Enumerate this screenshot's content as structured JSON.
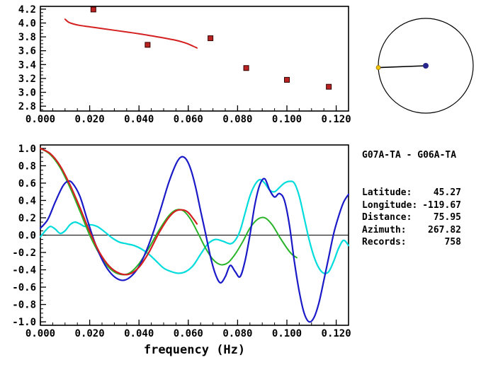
{
  "figure_bg": "#ffffff",
  "station_info": {
    "pair": "G07A-TA - G06A-TA",
    "rows": [
      {
        "label": "Latitude:",
        "value": "45.27"
      },
      {
        "label": "Longitude:",
        "value": "-119.67"
      },
      {
        "label": "Distance:",
        "value": "75.95"
      },
      {
        "label": "Azimuth:",
        "value": "267.82"
      },
      {
        "label": "Records:",
        "value": "758"
      }
    ]
  },
  "azimuth_plot": {
    "azimuth_deg": 267.82,
    "circle_color": "#000000",
    "line_color": "#000000",
    "center_dot_color": "#26268c",
    "edge_dot_color": "#f2c200"
  },
  "chart_data": [
    {
      "type": "line",
      "name": "group-velocity-dispersion",
      "title": "",
      "xlabel": "",
      "ylabel": "",
      "xlim": [
        0,
        0.125
      ],
      "ylim": [
        2.73,
        4.24
      ],
      "xticks": [
        0.0,
        0.02,
        0.04,
        0.06,
        0.08,
        0.1,
        0.12
      ],
      "xtick_labels": [
        "0.000",
        "0.020",
        "0.040",
        "0.060",
        "0.080",
        "0.100",
        "0.120"
      ],
      "yticks": [
        2.8,
        3.0,
        3.2,
        3.4,
        3.6,
        3.8,
        4.0,
        4.2
      ],
      "ytick_labels": [
        "2.8",
        "3.0",
        "3.2",
        "3.4",
        "3.6",
        "3.8",
        "4.0",
        "4.2"
      ],
      "x_minor_step": 0.005,
      "y_minor_step": 0.05,
      "zero_line": false,
      "series": [
        {
          "name": "reference-dispersion-curve",
          "type": "line",
          "color": "#d42020",
          "width": 2.0,
          "points": [
            [
              0.01,
              4.055
            ],
            [
              0.0115,
              4.01
            ],
            [
              0.0135,
              3.985
            ],
            [
              0.016,
              3.965
            ],
            [
              0.02,
              3.945
            ],
            [
              0.025,
              3.92
            ],
            [
              0.03,
              3.895
            ],
            [
              0.035,
              3.87
            ],
            [
              0.04,
              3.845
            ],
            [
              0.045,
              3.815
            ],
            [
              0.05,
              3.785
            ],
            [
              0.055,
              3.75
            ],
            [
              0.059,
              3.71
            ],
            [
              0.062,
              3.665
            ],
            [
              0.0635,
              3.64
            ]
          ]
        },
        {
          "name": "measured-velocity",
          "type": "scatter",
          "marker": "square",
          "color": "#bb2222",
          "edge_color": "#300000",
          "size": 7,
          "points": [
            [
              0.0215,
              4.195
            ],
            [
              0.0435,
              3.685
            ],
            [
              0.069,
              3.78
            ],
            [
              0.0835,
              3.35
            ],
            [
              0.1,
              3.18
            ],
            [
              0.117,
              3.08
            ]
          ]
        }
      ]
    },
    {
      "type": "line",
      "name": "cross-correlation",
      "title": "",
      "xlabel": "frequency (Hz)",
      "ylabel": "",
      "xlim": [
        0,
        0.125
      ],
      "ylim": [
        -1.04,
        1.04
      ],
      "xticks": [
        0.0,
        0.02,
        0.04,
        0.06,
        0.08,
        0.1,
        0.12
      ],
      "xtick_labels": [
        "0.000",
        "0.020",
        "0.040",
        "0.060",
        "0.080",
        "0.100",
        "0.120"
      ],
      "yticks": [
        -1.0,
        -0.8,
        -0.6,
        -0.4,
        -0.2,
        0.0,
        0.2,
        0.4,
        0.6,
        0.8,
        1.0
      ],
      "ytick_labels": [
        "-1.0",
        "-0.8",
        "-0.6",
        "-0.4",
        "-0.2",
        "0.0",
        "0.2",
        "0.4",
        "0.6",
        "0.8",
        "1.0"
      ],
      "x_minor_step": 0.005,
      "y_minor_step": 0.05,
      "zero_line": true,
      "series": [
        {
          "name": "cyan-curve",
          "type": "line",
          "color": "#00dcdc",
          "width": 2.2,
          "points": [
            [
              0.0,
              -0.02
            ],
            [
              0.002,
              0.05
            ],
            [
              0.004,
              0.1
            ],
            [
              0.006,
              0.07
            ],
            [
              0.008,
              0.02
            ],
            [
              0.01,
              0.05
            ],
            [
              0.012,
              0.12
            ],
            [
              0.014,
              0.15
            ],
            [
              0.016,
              0.13
            ],
            [
              0.018,
              0.1
            ],
            [
              0.02,
              0.12
            ],
            [
              0.023,
              0.1
            ],
            [
              0.026,
              0.04
            ],
            [
              0.029,
              -0.03
            ],
            [
              0.032,
              -0.08
            ],
            [
              0.035,
              -0.1
            ],
            [
              0.038,
              -0.12
            ],
            [
              0.041,
              -0.16
            ],
            [
              0.044,
              -0.22
            ],
            [
              0.047,
              -0.3
            ],
            [
              0.05,
              -0.38
            ],
            [
              0.053,
              -0.42
            ],
            [
              0.056,
              -0.44
            ],
            [
              0.059,
              -0.42
            ],
            [
              0.062,
              -0.35
            ],
            [
              0.065,
              -0.22
            ],
            [
              0.068,
              -0.1
            ],
            [
              0.071,
              -0.05
            ],
            [
              0.074,
              -0.07
            ],
            [
              0.077,
              -0.1
            ],
            [
              0.079,
              -0.06
            ],
            [
              0.081,
              0.05
            ],
            [
              0.083,
              0.25
            ],
            [
              0.085,
              0.45
            ],
            [
              0.087,
              0.58
            ],
            [
              0.089,
              0.64
            ],
            [
              0.091,
              0.6
            ],
            [
              0.093,
              0.52
            ],
            [
              0.095,
              0.5
            ],
            [
              0.097,
              0.55
            ],
            [
              0.099,
              0.6
            ],
            [
              0.101,
              0.62
            ],
            [
              0.103,
              0.6
            ],
            [
              0.105,
              0.45
            ],
            [
              0.107,
              0.2
            ],
            [
              0.109,
              -0.05
            ],
            [
              0.111,
              -0.25
            ],
            [
              0.113,
              -0.38
            ],
            [
              0.115,
              -0.44
            ],
            [
              0.117,
              -0.42
            ],
            [
              0.119,
              -0.3
            ],
            [
              0.121,
              -0.15
            ],
            [
              0.123,
              -0.06
            ],
            [
              0.125,
              -0.12
            ]
          ]
        },
        {
          "name": "green-curve",
          "type": "line",
          "color": "#28b428",
          "width": 2.0,
          "points": [
            [
              0.0,
              1.0
            ],
            [
              0.004,
              0.93
            ],
            [
              0.008,
              0.78
            ],
            [
              0.012,
              0.55
            ],
            [
              0.016,
              0.28
            ],
            [
              0.02,
              0.0
            ],
            [
              0.024,
              -0.22
            ],
            [
              0.028,
              -0.38
            ],
            [
              0.032,
              -0.45
            ],
            [
              0.036,
              -0.44
            ],
            [
              0.04,
              -0.33
            ],
            [
              0.044,
              -0.15
            ],
            [
              0.048,
              0.05
            ],
            [
              0.052,
              0.22
            ],
            [
              0.055,
              0.29
            ],
            [
              0.058,
              0.28
            ],
            [
              0.061,
              0.18
            ],
            [
              0.064,
              0.02
            ],
            [
              0.067,
              -0.15
            ],
            [
              0.07,
              -0.28
            ],
            [
              0.073,
              -0.34
            ],
            [
              0.076,
              -0.32
            ],
            [
              0.079,
              -0.22
            ],
            [
              0.082,
              -0.08
            ],
            [
              0.085,
              0.08
            ],
            [
              0.088,
              0.18
            ],
            [
              0.091,
              0.2
            ],
            [
              0.094,
              0.12
            ],
            [
              0.097,
              -0.02
            ],
            [
              0.1,
              -0.15
            ],
            [
              0.102,
              -0.22
            ],
            [
              0.104,
              -0.26
            ]
          ]
        },
        {
          "name": "blue-curve",
          "type": "line",
          "color": "#1a1ac8",
          "width": 2.2,
          "points": [
            [
              0.0,
              0.08
            ],
            [
              0.003,
              0.18
            ],
            [
              0.006,
              0.38
            ],
            [
              0.009,
              0.56
            ],
            [
              0.011,
              0.62
            ],
            [
              0.013,
              0.6
            ],
            [
              0.016,
              0.45
            ],
            [
              0.019,
              0.18
            ],
            [
              0.022,
              -0.08
            ],
            [
              0.025,
              -0.28
            ],
            [
              0.028,
              -0.42
            ],
            [
              0.031,
              -0.5
            ],
            [
              0.034,
              -0.52
            ],
            [
              0.037,
              -0.47
            ],
            [
              0.04,
              -0.36
            ],
            [
              0.043,
              -0.18
            ],
            [
              0.046,
              0.05
            ],
            [
              0.049,
              0.32
            ],
            [
              0.052,
              0.6
            ],
            [
              0.055,
              0.82
            ],
            [
              0.057,
              0.9
            ],
            [
              0.059,
              0.88
            ],
            [
              0.061,
              0.76
            ],
            [
              0.063,
              0.55
            ],
            [
              0.065,
              0.28
            ],
            [
              0.067,
              0.02
            ],
            [
              0.069,
              -0.25
            ],
            [
              0.071,
              -0.45
            ],
            [
              0.073,
              -0.55
            ],
            [
              0.075,
              -0.48
            ],
            [
              0.077,
              -0.35
            ],
            [
              0.079,
              -0.42
            ],
            [
              0.081,
              -0.48
            ],
            [
              0.083,
              -0.3
            ],
            [
              0.085,
              0.0
            ],
            [
              0.087,
              0.35
            ],
            [
              0.089,
              0.58
            ],
            [
              0.091,
              0.65
            ],
            [
              0.093,
              0.52
            ],
            [
              0.095,
              0.44
            ],
            [
              0.097,
              0.48
            ],
            [
              0.099,
              0.4
            ],
            [
              0.101,
              0.12
            ],
            [
              0.103,
              -0.3
            ],
            [
              0.105,
              -0.65
            ],
            [
              0.107,
              -0.9
            ],
            [
              0.109,
              -1.0
            ],
            [
              0.111,
              -0.95
            ],
            [
              0.113,
              -0.78
            ],
            [
              0.115,
              -0.52
            ],
            [
              0.117,
              -0.25
            ],
            [
              0.119,
              0.02
            ],
            [
              0.121,
              0.22
            ],
            [
              0.123,
              0.38
            ],
            [
              0.125,
              0.47
            ]
          ]
        },
        {
          "name": "red-curve",
          "type": "line",
          "color": "#d42020",
          "width": 2.2,
          "points": [
            [
              0.0,
              1.0
            ],
            [
              0.004,
              0.94
            ],
            [
              0.008,
              0.8
            ],
            [
              0.012,
              0.58
            ],
            [
              0.016,
              0.32
            ],
            [
              0.02,
              0.04
            ],
            [
              0.024,
              -0.2
            ],
            [
              0.028,
              -0.36
            ],
            [
              0.032,
              -0.44
            ],
            [
              0.036,
              -0.45
            ],
            [
              0.04,
              -0.37
            ],
            [
              0.044,
              -0.2
            ],
            [
              0.048,
              0.02
            ],
            [
              0.052,
              0.2
            ],
            [
              0.055,
              0.28
            ],
            [
              0.058,
              0.29
            ],
            [
              0.06,
              0.26
            ],
            [
              0.062,
              0.19
            ],
            [
              0.0635,
              0.13
            ]
          ]
        }
      ]
    }
  ]
}
